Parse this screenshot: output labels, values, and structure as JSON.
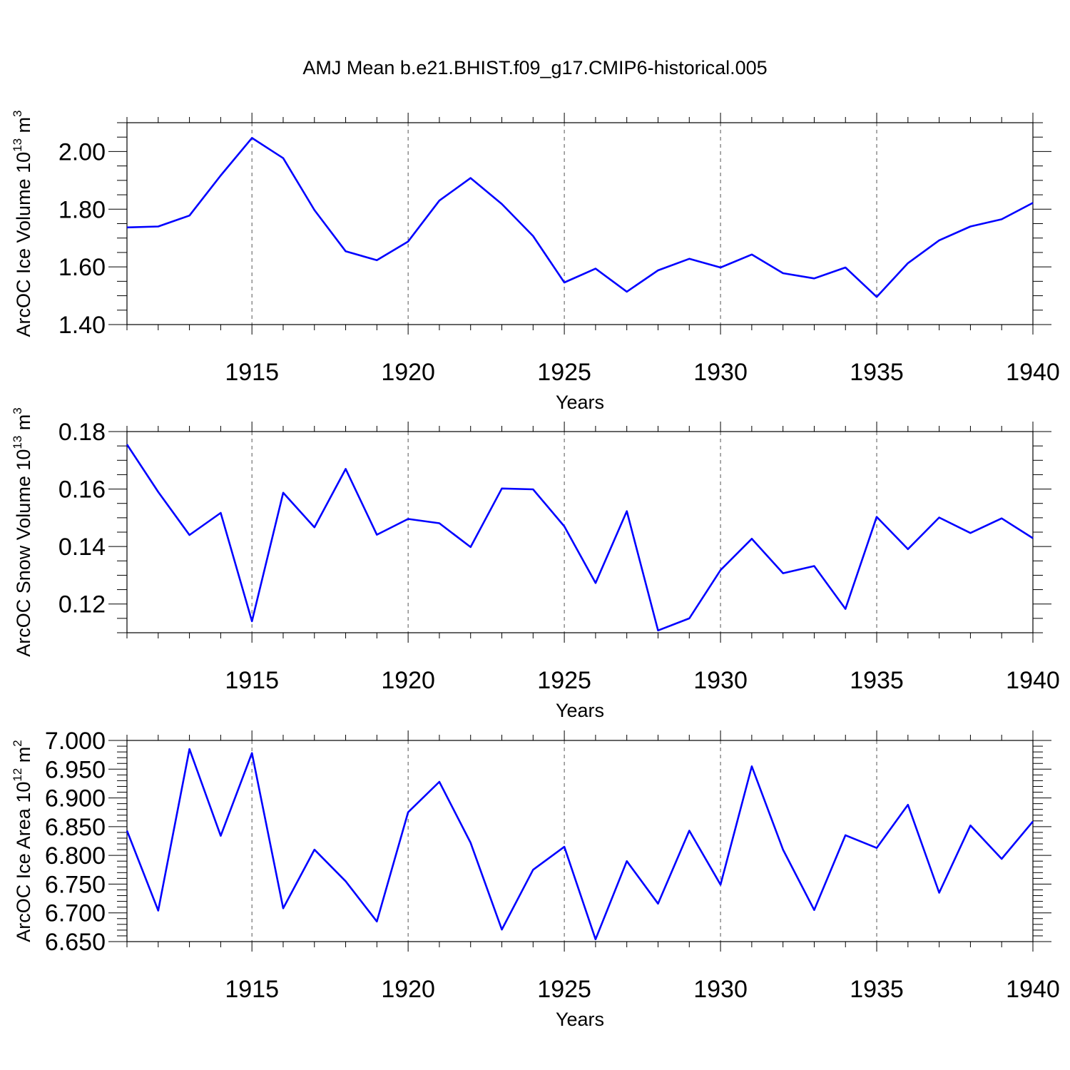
{
  "title": "AMJ Mean b.e21.BHIST.f09_g17.CMIP6-historical.005",
  "colors": {
    "series": "#0000ff",
    "axis": "#000000",
    "grid": "#555555"
  },
  "chart_data": [
    {
      "type": "line",
      "ylabel": "ArcOC Ice Volume 10",
      "ylabel_exp": "13",
      "ylabel_unit": " m",
      "ylabel_unit_exp": "3",
      "xlabel": "Years",
      "xlim": [
        1911,
        1940
      ],
      "ylim": [
        1.4,
        2.1
      ],
      "xticks": [
        1915,
        1920,
        1925,
        1930,
        1935,
        1940
      ],
      "xtick_labels": [
        "1915",
        "1920",
        "1925",
        "1930",
        "1935",
        "1940"
      ],
      "yticks": [
        1.4,
        1.6,
        1.8,
        2.0
      ],
      "ytick_labels": [
        "1.40",
        "1.60",
        "1.80",
        "2.00"
      ],
      "yminor_step": 0.05,
      "x": [
        1911,
        1912,
        1913,
        1914,
        1915,
        1916,
        1917,
        1918,
        1919,
        1920,
        1921,
        1922,
        1923,
        1924,
        1925,
        1926,
        1927,
        1928,
        1929,
        1930,
        1931,
        1932,
        1933,
        1934,
        1935,
        1936,
        1937,
        1938,
        1939,
        1940
      ],
      "values": [
        1.737,
        1.74,
        1.778,
        1.917,
        2.047,
        1.977,
        1.797,
        1.654,
        1.623,
        1.688,
        1.83,
        1.908,
        1.818,
        1.707,
        1.546,
        1.594,
        1.514,
        1.588,
        1.628,
        1.598,
        1.643,
        1.578,
        1.56,
        1.598,
        1.496,
        1.613,
        1.692,
        1.74,
        1.765,
        1.822
      ]
    },
    {
      "type": "line",
      "ylabel": "ArcOC Snow Volume 10",
      "ylabel_exp": "13",
      "ylabel_unit": " m",
      "ylabel_unit_exp": "3",
      "xlabel": "Years",
      "xlim": [
        1911,
        1940
      ],
      "ylim": [
        0.11,
        0.18
      ],
      "xticks": [
        1915,
        1920,
        1925,
        1930,
        1935,
        1940
      ],
      "xtick_labels": [
        "1915",
        "1920",
        "1925",
        "1930",
        "1935",
        "1940"
      ],
      "yticks": [
        0.12,
        0.14,
        0.16,
        0.18
      ],
      "ytick_labels": [
        "0.12",
        "0.14",
        "0.16",
        "0.18"
      ],
      "yminor_step": 0.005,
      "x": [
        1911,
        1912,
        1913,
        1914,
        1915,
        1916,
        1917,
        1918,
        1919,
        1920,
        1921,
        1922,
        1923,
        1924,
        1925,
        1926,
        1927,
        1928,
        1929,
        1930,
        1931,
        1932,
        1933,
        1934,
        1935,
        1936,
        1937,
        1938,
        1939,
        1940
      ],
      "values": [
        0.1755,
        0.159,
        0.144,
        0.1517,
        0.114,
        0.1587,
        0.1467,
        0.167,
        0.1441,
        0.1496,
        0.1481,
        0.1398,
        0.1602,
        0.1599,
        0.147,
        0.1273,
        0.1523,
        0.1108,
        0.115,
        0.1318,
        0.1427,
        0.1307,
        0.1332,
        0.1183,
        0.1503,
        0.1391,
        0.1501,
        0.1447,
        0.1498,
        0.1429
      ]
    },
    {
      "type": "line",
      "ylabel": "ArcOC Ice Area 10",
      "ylabel_exp": "12",
      "ylabel_unit": " m",
      "ylabel_unit_exp": "2",
      "xlabel": "Years",
      "xlim": [
        1911,
        1940
      ],
      "ylim": [
        6.65,
        7.0
      ],
      "xticks": [
        1915,
        1920,
        1925,
        1930,
        1935,
        1940
      ],
      "xtick_labels": [
        "1915",
        "1920",
        "1925",
        "1930",
        "1935",
        "1940"
      ],
      "yticks": [
        6.65,
        6.7,
        6.75,
        6.8,
        6.85,
        6.9,
        6.95,
        7.0
      ],
      "ytick_labels": [
        "6.650",
        "6.700",
        "6.750",
        "6.800",
        "6.850",
        "6.900",
        "6.950",
        "7.000"
      ],
      "yminor_step": 0.01,
      "x": [
        1911,
        1912,
        1913,
        1914,
        1915,
        1916,
        1917,
        1918,
        1919,
        1920,
        1921,
        1922,
        1923,
        1924,
        1925,
        1926,
        1927,
        1928,
        1929,
        1930,
        1931,
        1932,
        1933,
        1934,
        1935,
        1936,
        1937,
        1938,
        1939,
        1940
      ],
      "values": [
        6.843,
        6.704,
        6.985,
        6.834,
        6.978,
        6.708,
        6.81,
        6.755,
        6.685,
        6.875,
        6.928,
        6.822,
        6.671,
        6.775,
        6.815,
        6.654,
        6.79,
        6.716,
        6.843,
        6.749,
        6.955,
        6.81,
        6.705,
        6.835,
        6.813,
        6.888,
        6.735,
        6.852,
        6.794,
        6.859
      ]
    }
  ]
}
